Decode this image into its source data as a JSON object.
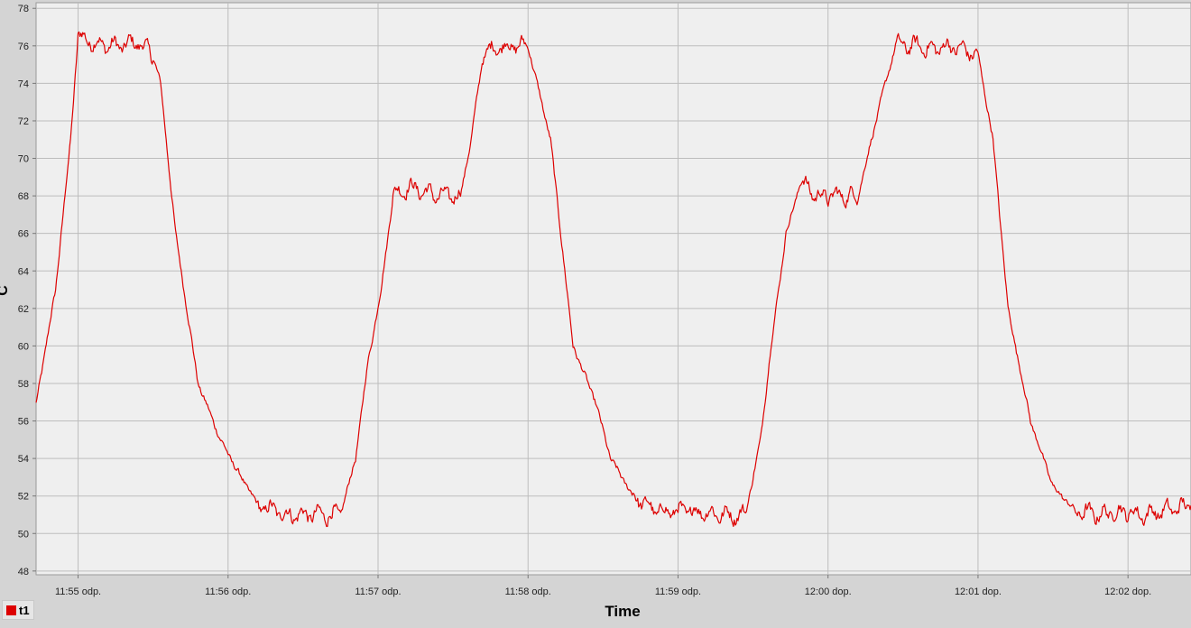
{
  "chart_data": {
    "type": "line",
    "title": "",
    "xlabel": "Time",
    "ylabel": "C",
    "ylim": [
      47.8,
      78.3
    ],
    "y_ticks": [
      48,
      50,
      52,
      54,
      56,
      58,
      60,
      62,
      64,
      66,
      68,
      70,
      72,
      74,
      76,
      78
    ],
    "x_ticks": [
      "11:55 odp.",
      "11:56 odp.",
      "11:57 odp.",
      "11:58 odp.",
      "11:59 odp.",
      "12:00 dop.",
      "12:01 dop.",
      "12:02 dop."
    ],
    "x_unit": "minutes after 11:55",
    "xlim": [
      -0.28,
      7.42
    ],
    "grid": true,
    "legend_position": "bottom-left",
    "series": [
      {
        "name": "t1",
        "color": "#dd0000",
        "x": [
          -0.28,
          -0.15,
          -0.05,
          0.0,
          0.1,
          0.2,
          0.3,
          0.4,
          0.5,
          0.55,
          0.65,
          0.8,
          0.95,
          1.05,
          1.2,
          1.4,
          1.6,
          1.75,
          1.85,
          1.93,
          2.02,
          2.1,
          2.2,
          2.4,
          2.55,
          2.62,
          2.7,
          2.8,
          2.9,
          3.0,
          3.15,
          3.3,
          3.45,
          3.55,
          3.7,
          3.85,
          4.0,
          4.15,
          4.3,
          4.45,
          4.55,
          4.62,
          4.72,
          4.82,
          4.92,
          5.05,
          5.2,
          5.35,
          5.45,
          5.5,
          5.6,
          5.7,
          5.8,
          5.9,
          6.0,
          6.1,
          6.2,
          6.35,
          6.5,
          6.65,
          6.8,
          6.95,
          7.1,
          7.25,
          7.42
        ],
        "values": [
          56.9,
          63.0,
          71.0,
          76.5,
          76.2,
          76.0,
          76.0,
          76.2,
          75.5,
          74.0,
          66.0,
          58.0,
          55.0,
          53.5,
          51.5,
          51.0,
          51.0,
          51.0,
          54.0,
          59.0,
          63.0,
          68.0,
          68.5,
          68.0,
          68.0,
          71.0,
          75.5,
          76.0,
          76.0,
          76.0,
          71.0,
          60.0,
          57.0,
          54.0,
          52.0,
          51.2,
          51.2,
          51.2,
          51.0,
          51.0,
          55.0,
          60.0,
          66.0,
          68.8,
          68.0,
          68.0,
          68.0,
          73.0,
          76.0,
          76.0,
          76.0,
          75.8,
          76.0,
          75.8,
          75.5,
          71.0,
          62.0,
          56.0,
          52.5,
          51.2,
          51.0,
          51.2,
          51.0,
          51.2,
          51.5
        ]
      }
    ]
  }
}
